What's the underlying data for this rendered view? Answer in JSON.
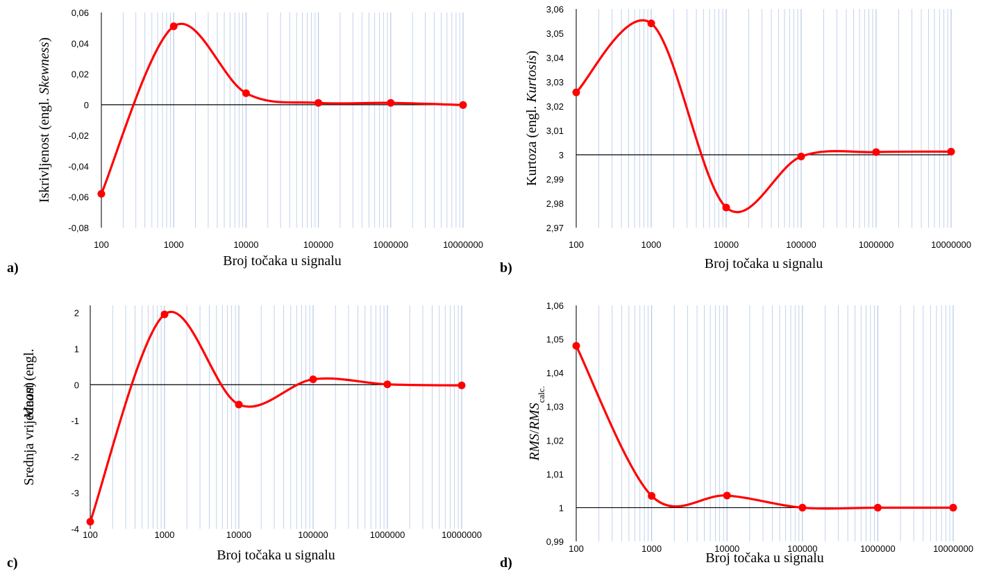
{
  "colors": {
    "series": "#ff0000",
    "grid": "#b4c7e7",
    "axis": "#000000"
  },
  "chart_data": [
    {
      "type": "line",
      "panel_label": "a)",
      "xscale": "log",
      "xlim": [
        100,
        10000000
      ],
      "x_ticks": [
        "100",
        "1000",
        "10000",
        "100000",
        "1000000",
        "10000000"
      ],
      "ylim": [
        -0.08,
        0.06
      ],
      "y_ticks": [
        "0,06",
        "0,04",
        "0,02",
        "0",
        "-0,02",
        "-0,04",
        "-0,06",
        "-0,08"
      ],
      "xlabel": "Broj točaka u signalu",
      "ylabel_parts": [
        {
          "text": "Iskrivljenost (engl. ",
          "italic": false
        },
        {
          "text": "Skewness",
          "italic": true
        },
        {
          "text": ")",
          "italic": false
        }
      ],
      "reference_line": 0,
      "grid": true,
      "smooth": true,
      "x": [
        100,
        1000,
        10000,
        100000,
        1000000,
        10000000
      ],
      "y": [
        -0.058,
        0.051,
        0.0075,
        0.0012,
        0.0012,
        -0.0002
      ]
    },
    {
      "type": "line",
      "panel_label": "b)",
      "xscale": "log",
      "xlim": [
        100,
        10000000
      ],
      "x_ticks": [
        "100",
        "1000",
        "10000",
        "100000",
        "1000000",
        "10000000"
      ],
      "ylim": [
        2.97,
        3.06
      ],
      "y_ticks": [
        "3,06",
        "3,05",
        "3,04",
        "3,03",
        "3,02",
        "3,01",
        "3",
        "2,99",
        "2,98",
        "2,97"
      ],
      "xlabel": "Broj točaka u signalu",
      "ylabel_parts": [
        {
          "text": "Kurtoza (engl. ",
          "italic": false
        },
        {
          "text": "Kurtosis",
          "italic": true
        },
        {
          "text": ")",
          "italic": false
        }
      ],
      "reference_line": 3,
      "grid": true,
      "smooth": true,
      "x": [
        100,
        1000,
        10000,
        100000,
        1000000,
        10000000
      ],
      "y": [
        3.0257,
        3.0541,
        2.9783,
        2.9993,
        3.0011,
        3.0013
      ]
    },
    {
      "type": "line",
      "panel_label": "c)",
      "xscale": "log",
      "xlim": [
        100,
        10000000
      ],
      "x_ticks": [
        "100",
        "1000",
        "10000",
        "100000",
        "1000000",
        "10000000"
      ],
      "ylim": [
        -4,
        2.2
      ],
      "y_ticks": [
        "2",
        "1",
        "0",
        "-1",
        "-2",
        "-3",
        "-4"
      ],
      "y_tick_values": [
        2,
        1,
        0,
        -1,
        -2,
        -3,
        -4
      ],
      "xlabel": "Broj točaka u signalu",
      "ylabel_lines": [
        [
          {
            "text": "Srednja vrijednost (engl.",
            "italic": false
          }
        ],
        [
          {
            "text": "Mean",
            "italic": true
          },
          {
            "text": ")",
            "italic": false
          }
        ]
      ],
      "reference_line": 0,
      "grid": true,
      "smooth": true,
      "x": [
        100,
        1000,
        10000,
        100000,
        1000000,
        10000000
      ],
      "y": [
        -3.8,
        1.95,
        -0.55,
        0.15,
        0.01,
        -0.02
      ]
    },
    {
      "type": "line",
      "panel_label": "d)",
      "xscale": "log",
      "xlim": [
        100,
        10000000
      ],
      "x_ticks": [
        "100",
        "1000",
        "10000",
        "100000",
        "1000000",
        "10000000"
      ],
      "ylim": [
        0.99,
        1.06
      ],
      "y_ticks": [
        "1,06",
        "1,05",
        "1,04",
        "1,03",
        "1,02",
        "1,01",
        "1",
        "0,99"
      ],
      "xlabel": "Broj točaka u signalu",
      "ylabel_parts": [
        {
          "text": "RMS",
          "italic": true
        },
        {
          "text": "/",
          "italic": false
        },
        {
          "text": "RMS",
          "italic": true
        },
        {
          "text": "calc.",
          "italic": false,
          "sub": true
        }
      ],
      "reference_line": 1,
      "grid": true,
      "smooth": true,
      "x": [
        100,
        1000,
        10000,
        100000,
        1000000,
        10000000
      ],
      "y": [
        1.048,
        1.0035,
        1.0036,
        1.0,
        1.0,
        1.0
      ]
    }
  ]
}
